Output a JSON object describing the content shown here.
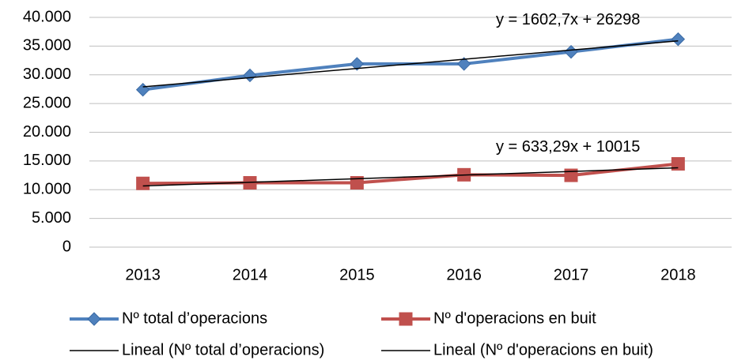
{
  "chart_data": {
    "type": "line",
    "categories": [
      "2013",
      "2014",
      "2015",
      "2016",
      "2017",
      "2018"
    ],
    "series": [
      {
        "name": "Nº total d’operacions",
        "color": "#4f81bd",
        "marker": "diamond",
        "values": [
          27400,
          29900,
          31900,
          31900,
          34000,
          36200
        ]
      },
      {
        "name": "Nº d'operacions en buit",
        "color": "#c0504d",
        "marker": "square",
        "values": [
          11100,
          11200,
          11200,
          12600,
          12500,
          14500
        ]
      }
    ],
    "trendlines": [
      {
        "name": "Lineal (Nº total d’operacions)",
        "label": "y = 1602,7x + 26298",
        "slope": 1602.7,
        "intercept": 26298,
        "color": "#000000"
      },
      {
        "name": "Lineal (Nº d'operacions en buit)",
        "label": "y = 633,29x + 10015",
        "slope": 633.29,
        "intercept": 10015,
        "color": "#000000"
      }
    ],
    "ylim": [
      0,
      40000
    ],
    "yticks": [
      0,
      {
        "value": 5000,
        "label": "5.000"
      },
      {
        "value": 10000,
        "label": "10.000"
      },
      {
        "value": 15000,
        "label": "15.000"
      },
      {
        "value": 20000,
        "label": "20.000"
      },
      {
        "value": 25000,
        "label": "25.000"
      },
      {
        "value": 30000,
        "label": "30.000"
      },
      {
        "value": 35000,
        "label": "35.000"
      },
      {
        "value": 40000,
        "label": "40.000"
      }
    ],
    "grid": true,
    "legend": "bottom"
  }
}
